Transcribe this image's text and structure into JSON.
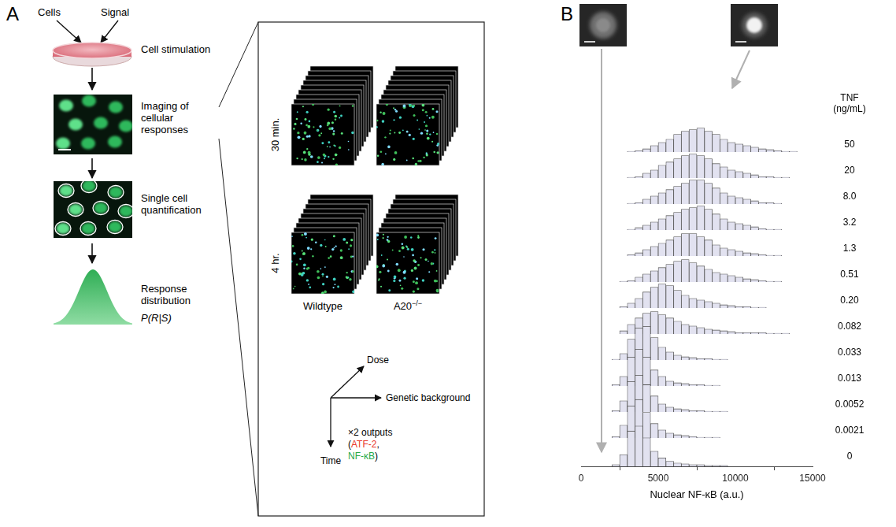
{
  "panel_letters": [
    "A",
    "B"
  ],
  "diagram": {
    "inputs": [
      "Cells",
      "Signal"
    ],
    "steps": [
      "Cell stimulation",
      "Imaging of cellular responses",
      "Single cell quantification",
      "Response distribution"
    ],
    "distribution_label": "P(R|S)",
    "time_points": [
      "30 min.",
      "4 hr."
    ],
    "genotypes": [
      {
        "text": "Wildtype"
      },
      {
        "text": "A20",
        "sup": "−/−"
      }
    ],
    "axes": [
      "Dose",
      "Genetic background",
      "Time"
    ],
    "outputs": [
      [
        {
          "text": "×2 outputs"
        }
      ],
      [
        {
          "text": "("
        },
        {
          "text": "ATF-2",
          "color": "#e8352b"
        },
        {
          "text": ","
        }
      ],
      [
        {
          "text": "NF-κB",
          "color": "#25a847"
        },
        {
          "text": ")"
        }
      ]
    ]
  },
  "chart_data": {
    "type": "histogram",
    "x_label": "Nuclear NF-κB (a.u.)",
    "series_label": "TNF (ng/mL)",
    "bins": [
      0,
      500,
      1000,
      1500,
      2000,
      2500,
      3000,
      3500,
      4000,
      4500,
      5000,
      5500,
      6000,
      6500,
      7000,
      7500,
      8000,
      8500,
      9000,
      9500,
      10000,
      10500,
      11000,
      11500,
      12000,
      12500,
      13000,
      13500,
      14000,
      14500,
      15000
    ],
    "series": [
      {
        "name": "50",
        "color": "#e2e2f0",
        "values": [
          0,
          0,
          0,
          0,
          0,
          0,
          0.5,
          1,
          2,
          4,
          6,
          8,
          11,
          13,
          14,
          15,
          13,
          11,
          8,
          6,
          5,
          4,
          3,
          2,
          1.5,
          1,
          0.5,
          0.5,
          0,
          0
        ]
      },
      {
        "name": "20",
        "color": "#e2e2f0",
        "values": [
          0,
          0,
          0,
          0,
          0,
          0,
          0.5,
          1,
          3,
          5,
          8,
          10,
          12,
          14,
          15,
          14,
          12,
          9,
          7,
          5,
          4,
          3,
          2,
          1,
          1,
          0.5,
          0.5,
          0,
          0,
          0
        ]
      },
      {
        "name": "8.0",
        "color": "#e2e2f0",
        "values": [
          0,
          0,
          0,
          0,
          0,
          0,
          0.5,
          1,
          3,
          5,
          7,
          9,
          11,
          13,
          15,
          15,
          13,
          10,
          7,
          5,
          4,
          3,
          2,
          1,
          1,
          0.5,
          0,
          0,
          0,
          0
        ]
      },
      {
        "name": "3.2",
        "color": "#e2e2f0",
        "values": [
          0,
          0,
          0,
          0,
          0,
          0,
          0.5,
          1.5,
          3,
          5,
          7,
          9,
          11,
          13,
          14,
          15,
          13,
          10,
          7,
          5,
          4,
          3,
          2,
          1,
          0.5,
          0.5,
          0,
          0,
          0,
          0
        ]
      },
      {
        "name": "1.3",
        "color": "#e2e2f0",
        "values": [
          0,
          0,
          0,
          0,
          0,
          0,
          1,
          2,
          4,
          6,
          8,
          10,
          12,
          14,
          14,
          12,
          10,
          7,
          5,
          4,
          3,
          2,
          1.5,
          1,
          0.5,
          0.5,
          0,
          0,
          0,
          0
        ]
      },
      {
        "name": "0.51",
        "color": "#e2e2f0",
        "values": [
          0,
          0,
          0,
          0,
          0,
          0.5,
          1,
          3,
          5,
          7,
          9,
          11,
          13,
          14,
          12,
          10,
          8,
          6,
          5,
          4,
          3,
          2,
          1.5,
          1,
          0.5,
          0.5,
          0,
          0,
          0,
          0
        ]
      },
      {
        "name": "0.20",
        "color": "#e2e2f0",
        "values": [
          0,
          0,
          0,
          0,
          0,
          1,
          3,
          6,
          10,
          13,
          15,
          14,
          11,
          8,
          6,
          5,
          4,
          3,
          2,
          1.5,
          1,
          1,
          0.5,
          0.5,
          0,
          0,
          0,
          0,
          0,
          0
        ]
      },
      {
        "name": "0.082",
        "color": "#e2e2f0",
        "values": [
          0,
          0,
          0,
          0,
          0,
          2,
          6,
          10,
          13,
          14,
          12,
          10,
          8,
          6,
          5,
          4,
          3,
          2.5,
          2,
          1.5,
          1,
          1,
          1,
          1,
          0.5,
          0.5,
          0.5,
          0,
          0,
          0
        ]
      },
      {
        "name": "0.033",
        "color": "#e2e2f0",
        "values": [
          0,
          0,
          0,
          0,
          0.5,
          4,
          13,
          20,
          21,
          14,
          8,
          5,
          3,
          2,
          1.5,
          1,
          1,
          0.5,
          0.5,
          0,
          0,
          0,
          0,
          0,
          0,
          0,
          0,
          0,
          0,
          0
        ]
      },
      {
        "name": "0.013",
        "color": "#e2e2f0",
        "values": [
          0,
          0,
          0,
          0,
          1,
          6,
          18,
          23,
          18,
          10,
          6,
          3,
          2,
          1.5,
          1,
          1,
          0.5,
          0.5,
          0,
          0,
          0,
          0,
          0,
          0,
          0,
          0,
          0,
          0,
          0,
          0
        ]
      },
      {
        "name": "0.0052",
        "color": "#e2e2f0",
        "values": [
          0,
          0,
          0,
          0,
          1,
          7,
          19,
          23,
          17,
          10,
          5,
          3,
          2,
          1.5,
          1,
          1,
          0.5,
          0.5,
          0.5,
          0,
          0,
          0,
          0,
          0,
          0,
          0,
          0,
          0,
          0,
          0
        ]
      },
      {
        "name": "0.0021",
        "color": "#e2e2f0",
        "values": [
          0,
          0,
          0,
          0,
          1,
          8,
          20,
          24,
          16,
          9,
          5,
          3,
          2,
          1.5,
          1,
          0.5,
          0.5,
          0.5,
          0,
          0,
          0,
          0,
          0,
          0,
          0,
          0,
          0,
          0,
          0,
          0
        ]
      },
      {
        "name": "0",
        "color": "#e2e2f0",
        "values": [
          0,
          0,
          0,
          0,
          1,
          7,
          21,
          24,
          17,
          9,
          5,
          3,
          2,
          1.5,
          1,
          1,
          0.5,
          0.5,
          0.5,
          0,
          0,
          0,
          0,
          0,
          0,
          0,
          0,
          0,
          0,
          0
        ]
      }
    ],
    "xlim": [
      0,
      15000
    ],
    "xticks": [
      0,
      5000,
      10000,
      15000
    ],
    "ylim": [
      0,
      30
    ],
    "grid": false,
    "tick_labels": "x"
  }
}
